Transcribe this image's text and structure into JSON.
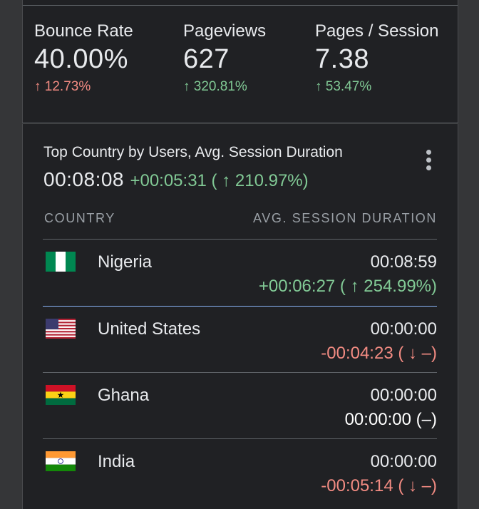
{
  "metrics": [
    {
      "label": "Bounce Rate",
      "value": "40.00%",
      "delta": "↑ 12.73%",
      "delta_color": "red"
    },
    {
      "label": "Pageviews",
      "value": "627",
      "delta": "↑ 320.81%",
      "delta_color": "green"
    },
    {
      "label": "Pages / Session",
      "value": "7.38",
      "delta": "↑ 53.47%",
      "delta_color": "green"
    }
  ],
  "country_card": {
    "title": "Top Country by Users, Avg. Session Duration",
    "headline_value": "00:08:08",
    "headline_change": "+00:05:31 ( ↑ 210.97%)",
    "col_country": "COUNTRY",
    "col_duration": "AVG. SESSION DURATION",
    "rows": [
      {
        "country": "Nigeria",
        "duration": "00:08:59",
        "change": "+00:06:27 ( ↑ 254.99%)",
        "change_color": "green"
      },
      {
        "country": "United States",
        "duration": "00:00:00",
        "change": "-00:04:23 ( ↓ –)",
        "change_color": "red"
      },
      {
        "country": "Ghana",
        "duration": "00:00:00",
        "change": "00:00:00 (–)",
        "change_color": "white"
      },
      {
        "country": "India",
        "duration": "00:00:00",
        "change": "-00:05:14 ( ↓ –)",
        "change_color": "red"
      }
    ]
  },
  "colors": {
    "positive": "#81c995",
    "negative": "#f28b82",
    "accent": "#8ab4f8"
  }
}
